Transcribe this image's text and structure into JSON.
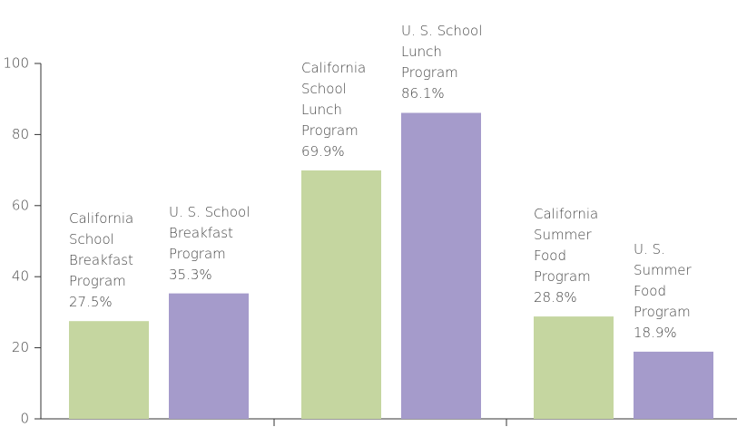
{
  "chart_data": {
    "type": "bar",
    "categories": [
      "California\nSchool\nBreakfast\nProgram",
      "U. S. School\nBreakfast\nProgram",
      "California\nSchool\nLunch\nProgram",
      "U. S. School\nLunch\nProgram",
      "California\nSummer\nFood\nProgram",
      "U. S.\nSummer\nFood\nProgram"
    ],
    "values": [
      27.5,
      35.3,
      69.9,
      86.1,
      28.8,
      18.9
    ],
    "value_labels": [
      "27.5%",
      "35.3%",
      "69.9%",
      "86.1%",
      "28.8%",
      "18.9%"
    ],
    "colors": [
      "#c5d6a0",
      "#a59bcb",
      "#c5d6a0",
      "#a59bcb",
      "#c5d6a0",
      "#a59bcb"
    ],
    "ylim": [
      0,
      100
    ],
    "yticks": [
      0,
      20,
      40,
      60,
      80,
      100
    ]
  }
}
